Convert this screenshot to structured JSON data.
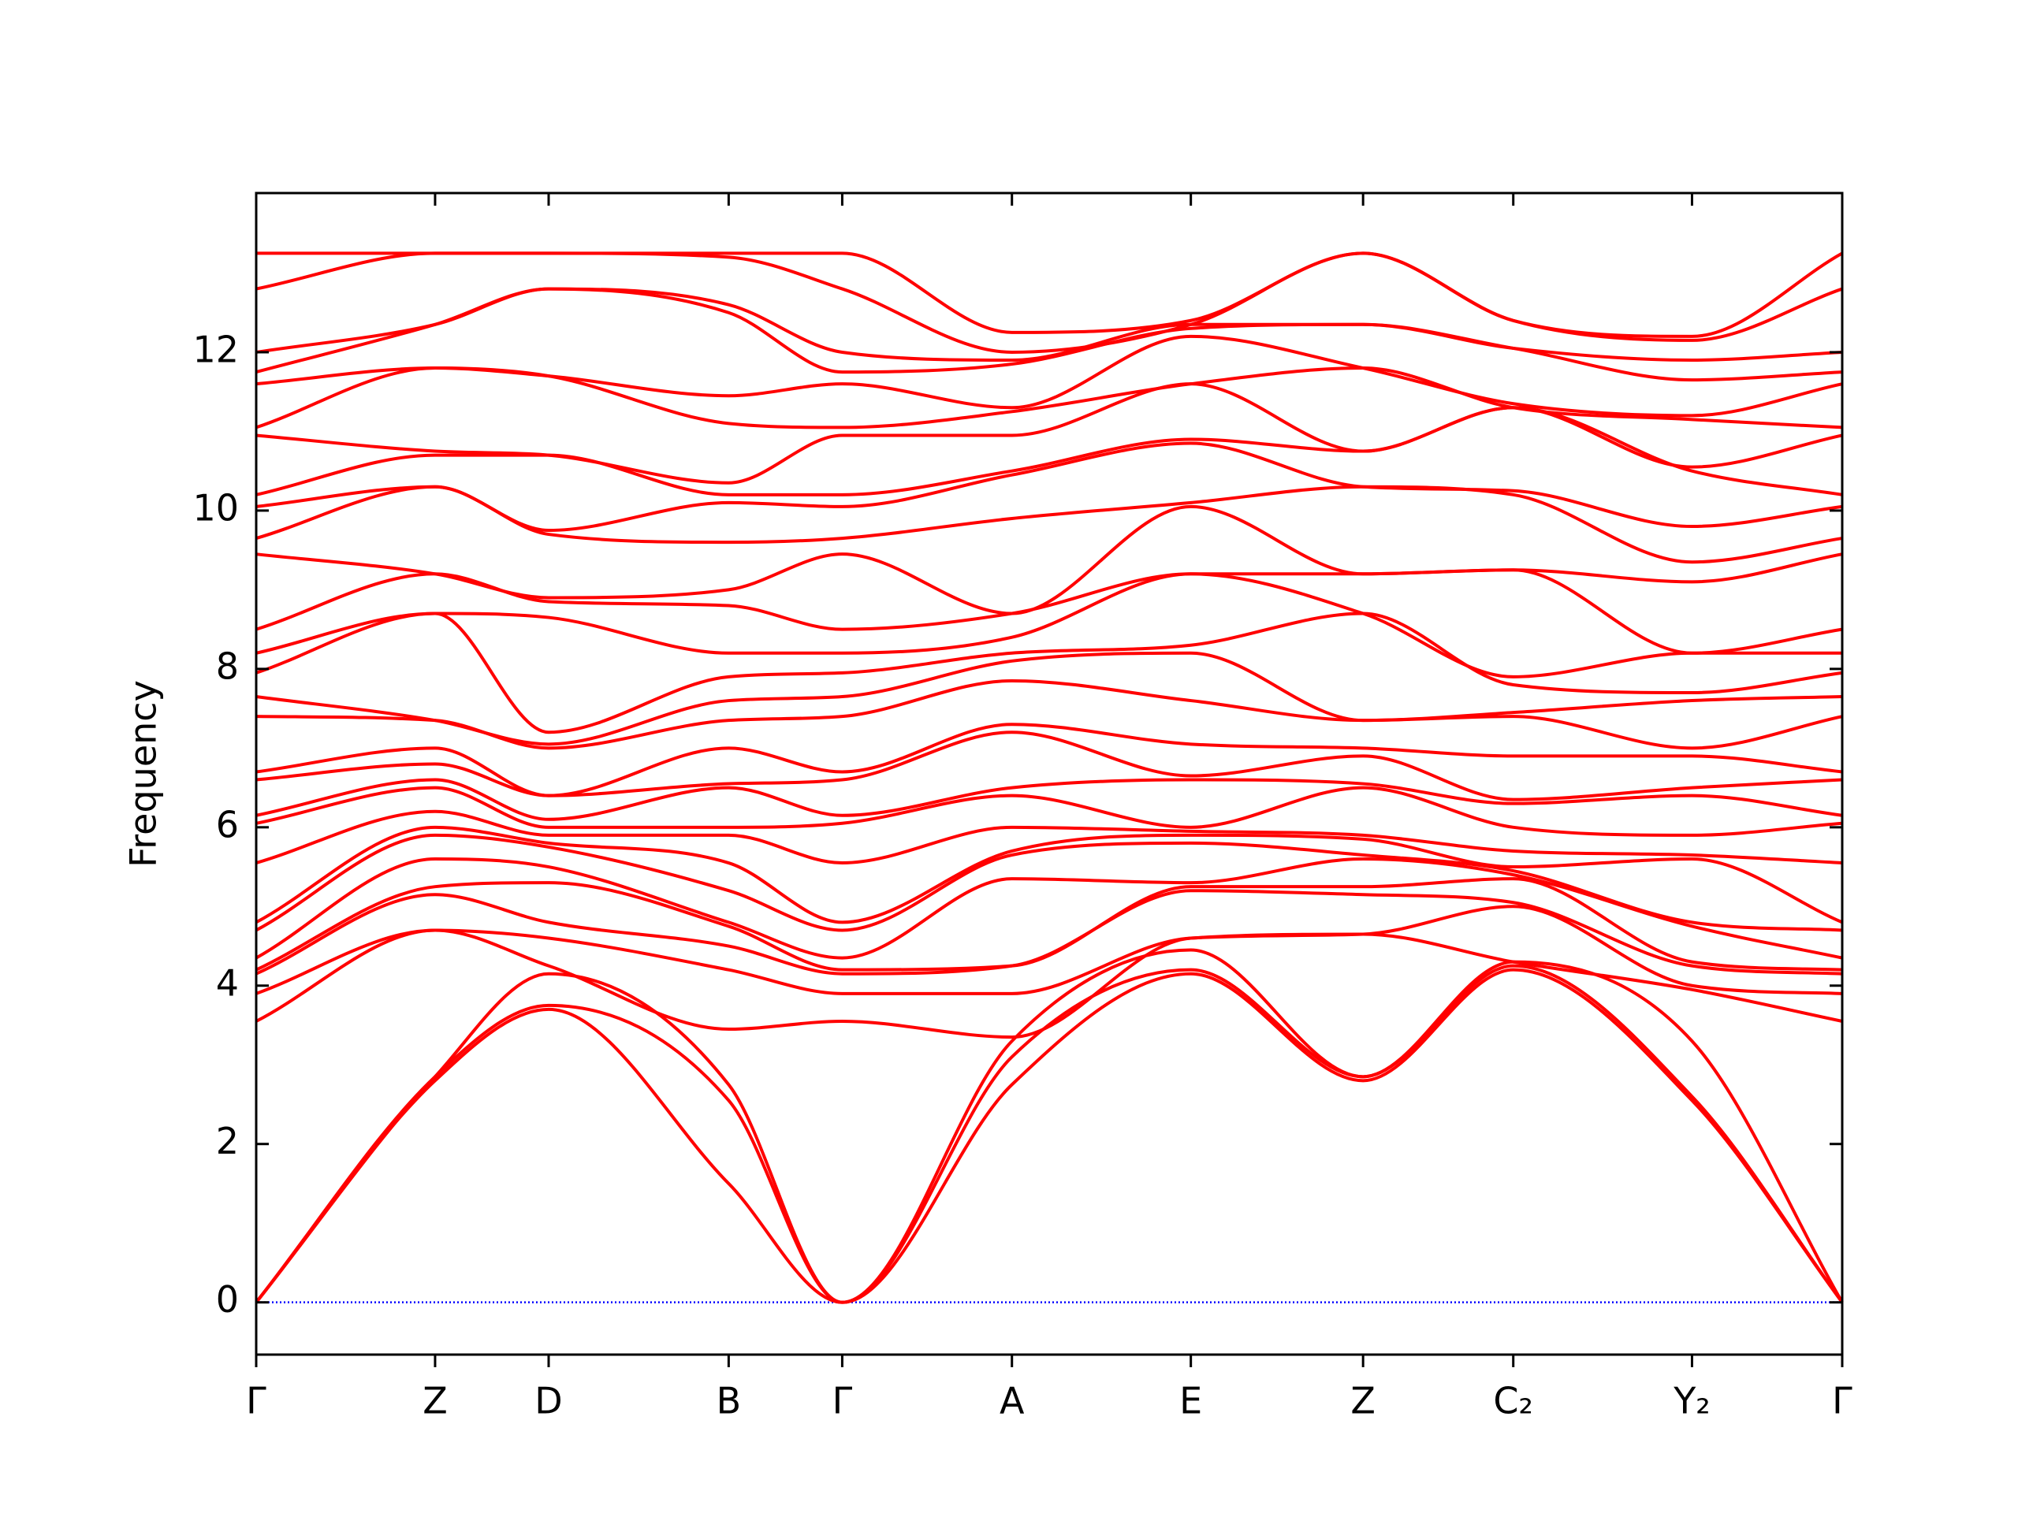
{
  "chart_data": {
    "type": "line",
    "ylabel": "Frequency",
    "x": [
      0,
      1.128,
      1.844,
      2.979,
      3.695,
      4.765,
      5.893,
      6.979,
      7.926,
      9.053,
      10
    ],
    "xlim": [
      0,
      10
    ],
    "xticks": [
      {
        "value": 0,
        "label": "Γ"
      },
      {
        "value": 1.128,
        "label": "Z"
      },
      {
        "value": 1.844,
        "label": "D"
      },
      {
        "value": 2.979,
        "label": "B"
      },
      {
        "value": 3.695,
        "label": "Γ"
      },
      {
        "value": 4.765,
        "label": "A"
      },
      {
        "value": 5.893,
        "label": "E"
      },
      {
        "value": 6.979,
        "label": "Z"
      },
      {
        "value": 7.926,
        "label": "C₂"
      },
      {
        "value": 9.053,
        "label": "Y₂"
      },
      {
        "value": 10,
        "label": "Γ"
      }
    ],
    "ylim": [
      -0.66,
      14.01
    ],
    "yticks": [
      0,
      2,
      4,
      6,
      8,
      10,
      12
    ],
    "hlines": [
      {
        "y": 0,
        "color": "#0000ff",
        "style": "dotted"
      }
    ],
    "series": [
      {
        "color": "#ff0000",
        "values": [
          0,
          2.8,
          3.7,
          1.5,
          0,
          2.75,
          4.15,
          2.8,
          4.2,
          2.55,
          0
        ]
      },
      {
        "color": "#ff0000",
        "values": [
          0,
          2.85,
          3.75,
          2.55,
          0,
          3.1,
          4.2,
          2.85,
          4.25,
          2.6,
          0
        ]
      },
      {
        "color": "#ff0000",
        "values": [
          0,
          2.85,
          4.15,
          2.75,
          0,
          3.3,
          4.45,
          2.85,
          4.3,
          3.3,
          0
        ]
      },
      {
        "color": "#ff0000",
        "values": [
          3.55,
          4.7,
          4.25,
          3.45,
          3.55,
          3.35,
          4.6,
          4.65,
          4.3,
          3.95,
          3.55
        ]
      },
      {
        "color": "#ff0000",
        "values": [
          3.9,
          4.7,
          4.6,
          4.2,
          3.9,
          3.9,
          4.6,
          4.65,
          5.0,
          4.0,
          3.9
        ]
      },
      {
        "color": "#ff0000",
        "values": [
          4.15,
          5.15,
          4.8,
          4.5,
          4.15,
          4.25,
          5.2,
          5.15,
          5.05,
          4.25,
          4.15
        ]
      },
      {
        "color": "#ff0000",
        "values": [
          4.2,
          5.25,
          5.3,
          4.75,
          4.2,
          4.25,
          5.25,
          5.25,
          5.35,
          4.3,
          4.2
        ]
      },
      {
        "color": "#ff0000",
        "values": [
          4.35,
          5.6,
          5.5,
          4.8,
          4.35,
          5.35,
          5.3,
          5.6,
          5.4,
          4.75,
          4.35
        ]
      },
      {
        "color": "#ff0000",
        "values": [
          4.7,
          5.9,
          5.75,
          5.2,
          4.7,
          5.65,
          5.8,
          5.65,
          5.45,
          4.8,
          4.7
        ]
      },
      {
        "color": "#ff0000",
        "values": [
          4.8,
          6.0,
          5.8,
          5.55,
          4.8,
          5.7,
          5.9,
          5.85,
          5.5,
          5.6,
          4.8
        ]
      },
      {
        "color": "#ff0000",
        "values": [
          5.55,
          6.2,
          5.9,
          5.9,
          5.55,
          6.0,
          5.95,
          5.9,
          5.7,
          5.65,
          5.55
        ]
      },
      {
        "color": "#ff0000",
        "values": [
          6.05,
          6.5,
          6.0,
          6.0,
          6.05,
          6.4,
          6.0,
          6.5,
          6.0,
          5.9,
          6.05
        ]
      },
      {
        "color": "#ff0000",
        "values": [
          6.15,
          6.6,
          6.1,
          6.5,
          6.15,
          6.5,
          6.6,
          6.55,
          6.3,
          6.4,
          6.15
        ]
      },
      {
        "color": "#ff0000",
        "values": [
          6.6,
          6.8,
          6.4,
          6.55,
          6.6,
          7.2,
          6.65,
          6.9,
          6.35,
          6.5,
          6.6
        ]
      },
      {
        "color": "#ff0000",
        "values": [
          6.7,
          7.0,
          6.4,
          7.0,
          6.7,
          7.3,
          7.05,
          7.0,
          6.9,
          6.9,
          6.7
        ]
      },
      {
        "color": "#ff0000",
        "values": [
          7.4,
          7.35,
          7.0,
          7.35,
          7.4,
          7.85,
          7.6,
          7.35,
          7.4,
          7.0,
          7.4
        ]
      },
      {
        "color": "#ff0000",
        "values": [
          7.65,
          7.35,
          7.05,
          7.6,
          7.65,
          8.1,
          8.2,
          7.35,
          7.45,
          7.6,
          7.65
        ]
      },
      {
        "color": "#ff0000",
        "values": [
          7.95,
          8.7,
          7.2,
          7.9,
          7.95,
          8.2,
          8.3,
          8.7,
          7.8,
          7.7,
          7.95
        ]
      },
      {
        "color": "#ff0000",
        "values": [
          8.2,
          8.7,
          8.65,
          8.2,
          8.2,
          8.4,
          9.2,
          8.7,
          7.9,
          8.2,
          8.2
        ]
      },
      {
        "color": "#ff0000",
        "values": [
          8.5,
          9.2,
          8.85,
          8.8,
          8.5,
          8.7,
          9.2,
          9.2,
          9.25,
          8.2,
          8.5
        ]
      },
      {
        "color": "#ff0000",
        "values": [
          9.45,
          9.2,
          8.9,
          9.0,
          9.45,
          8.7,
          10.05,
          9.2,
          9.25,
          9.1,
          9.45
        ]
      },
      {
        "color": "#ff0000",
        "values": [
          9.65,
          10.3,
          9.7,
          9.6,
          9.65,
          9.9,
          10.1,
          10.3,
          10.2,
          9.35,
          9.65
        ]
      },
      {
        "color": "#ff0000",
        "values": [
          10.05,
          10.3,
          9.75,
          10.1,
          10.05,
          10.45,
          10.85,
          10.3,
          10.25,
          9.8,
          10.05
        ]
      },
      {
        "color": "#ff0000",
        "values": [
          10.2,
          10.7,
          10.7,
          10.2,
          10.2,
          10.5,
          10.9,
          10.75,
          11.3,
          10.5,
          10.2
        ]
      },
      {
        "color": "#ff0000",
        "values": [
          10.95,
          10.75,
          10.7,
          10.35,
          10.95,
          10.95,
          11.6,
          10.75,
          11.3,
          10.55,
          10.95
        ]
      },
      {
        "color": "#ff0000",
        "values": [
          11.05,
          11.8,
          11.7,
          11.1,
          11.05,
          11.25,
          11.6,
          11.8,
          11.3,
          11.15,
          11.05
        ]
      },
      {
        "color": "#ff0000",
        "values": [
          11.6,
          11.8,
          11.7,
          11.45,
          11.6,
          11.3,
          12.2,
          11.8,
          11.35,
          11.2,
          11.6
        ]
      },
      {
        "color": "#ff0000",
        "values": [
          11.75,
          12.35,
          12.8,
          12.5,
          11.75,
          11.85,
          12.3,
          12.35,
          12.05,
          11.65,
          11.75
        ]
      },
      {
        "color": "#ff0000",
        "values": [
          12.0,
          12.35,
          12.8,
          12.6,
          12.0,
          11.9,
          12.35,
          12.35,
          12.05,
          11.9,
          12.0
        ]
      },
      {
        "color": "#ff0000",
        "values": [
          12.8,
          13.25,
          13.25,
          13.2,
          12.8,
          12.0,
          12.35,
          13.25,
          12.4,
          12.15,
          12.8
        ]
      },
      {
        "color": "#ff0000",
        "values": [
          13.25,
          13.25,
          13.25,
          13.25,
          13.25,
          12.25,
          12.4,
          13.25,
          12.4,
          12.2,
          13.25
        ]
      }
    ]
  }
}
